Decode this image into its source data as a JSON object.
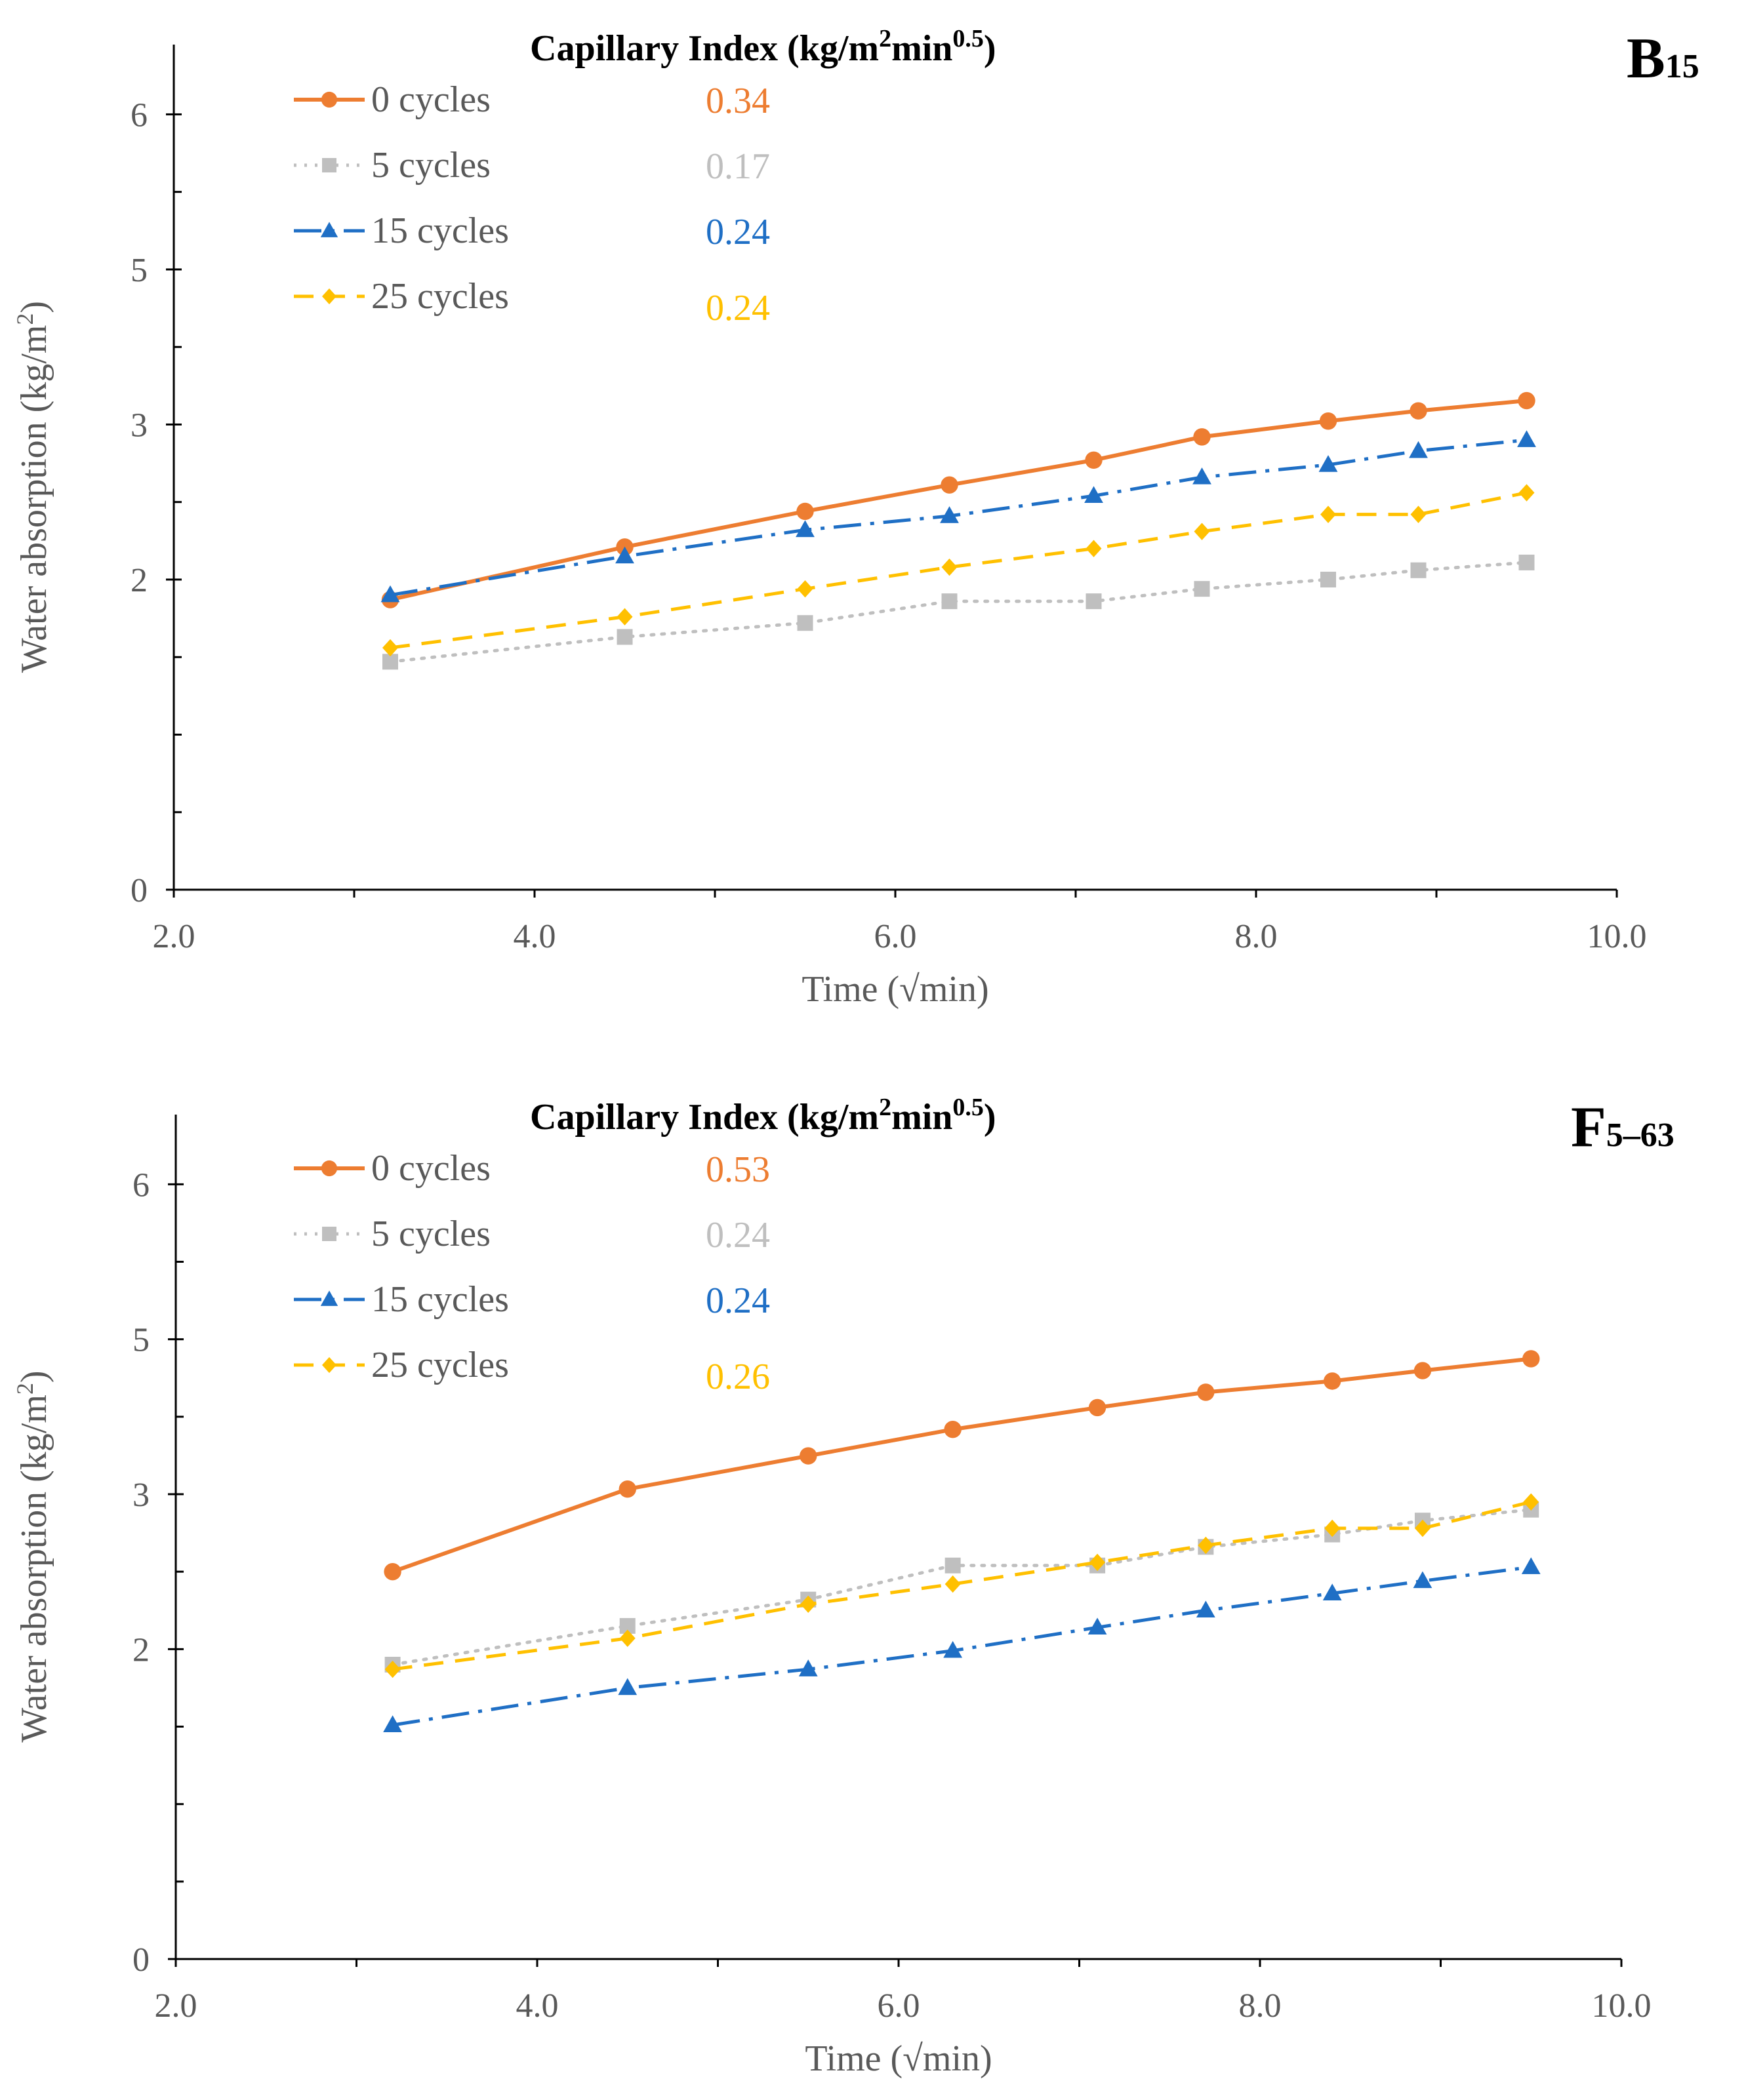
{
  "chart_data": [
    {
      "type": "line",
      "panel_label": "B",
      "panel_label_sub": "15",
      "xlabel": "Time (√min)",
      "ylabel": "Water absorption (kg/m2)",
      "ylabel_main": "Water absorption (kg/m",
      "ylabel_sup": "2",
      "ylabel_end": ")",
      "xlim": [
        2.0,
        10.0
      ],
      "ylim": [
        0,
        6.5
      ],
      "xticks": [
        2.0,
        4.0,
        6.0,
        8.0,
        10.0
      ],
      "xtick_labels": [
        "2.0",
        "4.0",
        "6.0",
        "8.0",
        "10.0"
      ],
      "yticks": [
        0,
        2,
        3,
        5,
        6
      ],
      "ytick_labels": [
        "0",
        "2",
        "3",
        "5",
        "6"
      ],
      "index_title": "Capillary Index (kg/m2min0.5)",
      "index_title_parts": [
        "Capillary Index (kg/m",
        "2",
        "min",
        "0.5",
        ")"
      ],
      "x": [
        3.2,
        4.5,
        5.5,
        6.3,
        7.1,
        7.7,
        8.4,
        8.9,
        9.5
      ],
      "series": [
        {
          "name": "0 cycles",
          "index": "0.34",
          "color": "#ED7D31",
          "marker": "circle",
          "dash": "solid",
          "values": [
            1.87,
            2.21,
            2.44,
            2.61,
            2.77,
            2.92,
            3.04,
            3.16,
            3.28
          ]
        },
        {
          "name": "5 cycles",
          "index": "0.17",
          "color": "#BFBFBF",
          "marker": "square",
          "dash": "dot",
          "values": [
            1.47,
            1.63,
            1.72,
            1.86,
            1.86,
            1.94,
            2.0,
            2.06,
            2.11
          ]
        },
        {
          "name": "15 cycles",
          "index": "0.24",
          "color": "#1F6FC5",
          "marker": "triangle",
          "dash": "dashdot",
          "values": [
            1.9,
            2.15,
            2.32,
            2.41,
            2.54,
            2.66,
            2.74,
            2.83,
            2.9
          ]
        },
        {
          "name": "25 cycles",
          "index": "0.24",
          "color": "#FFC000",
          "marker": "diamond",
          "dash": "dash",
          "values": [
            1.56,
            1.76,
            1.94,
            2.08,
            2.2,
            2.31,
            2.42,
            2.42,
            2.56
          ]
        }
      ]
    },
    {
      "type": "line",
      "panel_label": "F",
      "panel_label_sub": "5–63",
      "xlabel": "Time (√min)",
      "ylabel": "Water absorption (kg/m2)",
      "ylabel_main": "Water absorption (kg/m",
      "ylabel_sup": "2",
      "ylabel_end": ")",
      "xlim": [
        2.0,
        10.0
      ],
      "ylim": [
        0,
        6.5
      ],
      "xticks": [
        2.0,
        4.0,
        6.0,
        8.0,
        10.0
      ],
      "xtick_labels": [
        "2.0",
        "4.0",
        "6.0",
        "8.0",
        "10.0"
      ],
      "yticks": [
        0,
        2,
        3,
        5,
        6
      ],
      "ytick_labels": [
        "0",
        "2",
        "3",
        "5",
        "6"
      ],
      "index_title": "Capillary Index (kg/m2min0.5)",
      "index_title_parts": [
        "Capillary Index (kg/m",
        "2",
        "min",
        "0.5",
        ")"
      ],
      "x": [
        3.2,
        4.5,
        5.5,
        6.3,
        7.1,
        7.7,
        8.4,
        8.9,
        9.5
      ],
      "series": [
        {
          "name": "0 cycles",
          "index": "0.53",
          "color": "#ED7D31",
          "marker": "circle",
          "dash": "solid",
          "values": [
            2.5,
            3.06,
            3.45,
            3.76,
            4.02,
            4.24,
            4.4,
            4.55,
            4.72
          ]
        },
        {
          "name": "5 cycles",
          "index": "0.24",
          "color": "#BFBFBF",
          "marker": "square",
          "dash": "dot",
          "values": [
            1.9,
            2.15,
            2.32,
            2.54,
            2.54,
            2.66,
            2.74,
            2.83,
            2.9
          ]
        },
        {
          "name": "15 cycles",
          "index": "0.24",
          "color": "#1F6FC5",
          "marker": "triangle",
          "dash": "dashdot",
          "values": [
            1.51,
            1.75,
            1.87,
            1.99,
            2.14,
            2.25,
            2.36,
            2.44,
            2.53
          ]
        },
        {
          "name": "25 cycles",
          "index": "0.26",
          "color": "#FFC000",
          "marker": "diamond",
          "dash": "dash",
          "values": [
            1.87,
            2.07,
            2.29,
            2.42,
            2.56,
            2.67,
            2.78,
            2.78,
            2.95
          ]
        }
      ]
    }
  ]
}
